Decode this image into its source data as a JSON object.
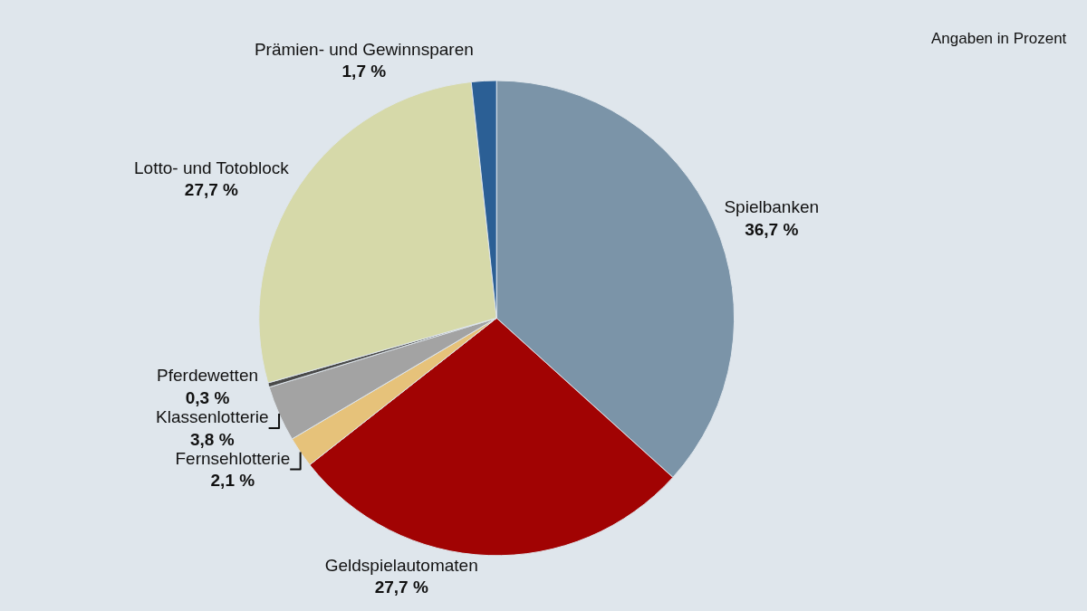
{
  "chart_data": {
    "type": "pie",
    "categories": [
      "Spielbanken",
      "Geldspielautomaten",
      "Fernsehlotterie",
      "Klassenlotterie",
      "Pferdewetten",
      "Lotto- und Totoblock",
      "Prämien- und Gewinnsparen"
    ],
    "values": [
      36.7,
      27.7,
      2.1,
      3.8,
      0.3,
      27.7,
      1.7
    ],
    "value_labels": [
      "36,7 %",
      "27,7 %",
      "2,1 %",
      "3,8 %",
      "0,3 %",
      "27,7 %",
      "1,7 %"
    ],
    "colors": [
      "#7b94a8",
      "#a10303",
      "#e6c27a",
      "#a3a3a3",
      "#4a4a4a",
      "#d6d9a9",
      "#2b5f95"
    ],
    "annotations": [
      "Angaben in Prozent"
    ],
    "legend": false
  }
}
